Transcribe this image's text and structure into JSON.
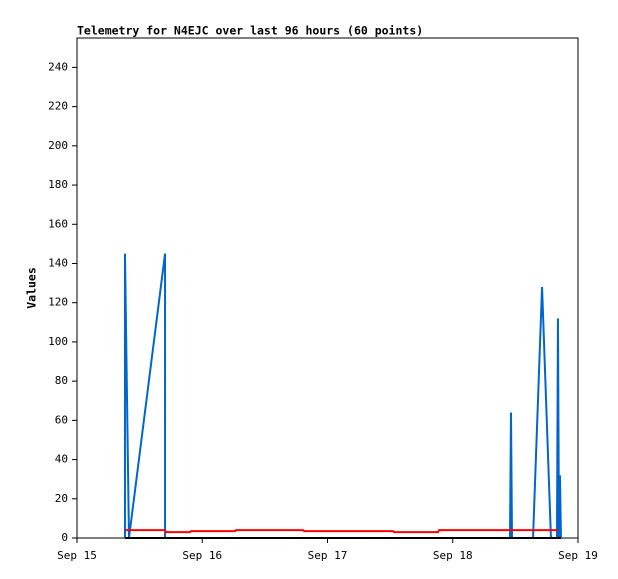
{
  "chart_data": {
    "type": "line",
    "title": "Telemetry for N4EJC over last 96 hours (60 points)",
    "y_label": "Values",
    "xlim": [
      0,
      4
    ],
    "xticks": [
      {
        "value": 0,
        "label": "Sep 15"
      },
      {
        "value": 1,
        "label": "Sep 16"
      },
      {
        "value": 2,
        "label": "Sep 17"
      },
      {
        "value": 3,
        "label": "Sep 18"
      },
      {
        "value": 4,
        "label": "Sep 19"
      }
    ],
    "ylim": [
      0,
      255
    ],
    "yticks": [
      0,
      20,
      40,
      60,
      80,
      100,
      120,
      140,
      160,
      180,
      200,
      220,
      240
    ],
    "grid": false,
    "series": [
      {
        "color": "#0066cc",
        "x": [
          0.383,
          0.383,
          0.415,
          0.703,
          0.703,
          3.457,
          3.465,
          3.473,
          3.641,
          3.713,
          3.784,
          3.832,
          3.84,
          3.848,
          3.856,
          3.864
        ],
        "values": [
          0,
          145,
          0,
          145,
          0,
          0,
          64,
          0,
          0,
          128,
          0,
          0,
          112,
          0,
          32,
          0
        ]
      },
      {
        "color": "#ff0000",
        "x": [
          0.383,
          0.703,
          0.711,
          0.902,
          0.91,
          1.262,
          1.27,
          1.805,
          1.813,
          2.523,
          2.531,
          2.883,
          2.891,
          3.84
        ],
        "values": [
          4,
          4,
          3,
          3,
          3.5,
          3.5,
          4,
          4,
          3.5,
          3.5,
          3,
          3,
          4,
          4
        ]
      },
      {
        "color": "#000000",
        "x": [
          0.383,
          3.864
        ],
        "values": [
          0,
          0
        ]
      }
    ]
  }
}
